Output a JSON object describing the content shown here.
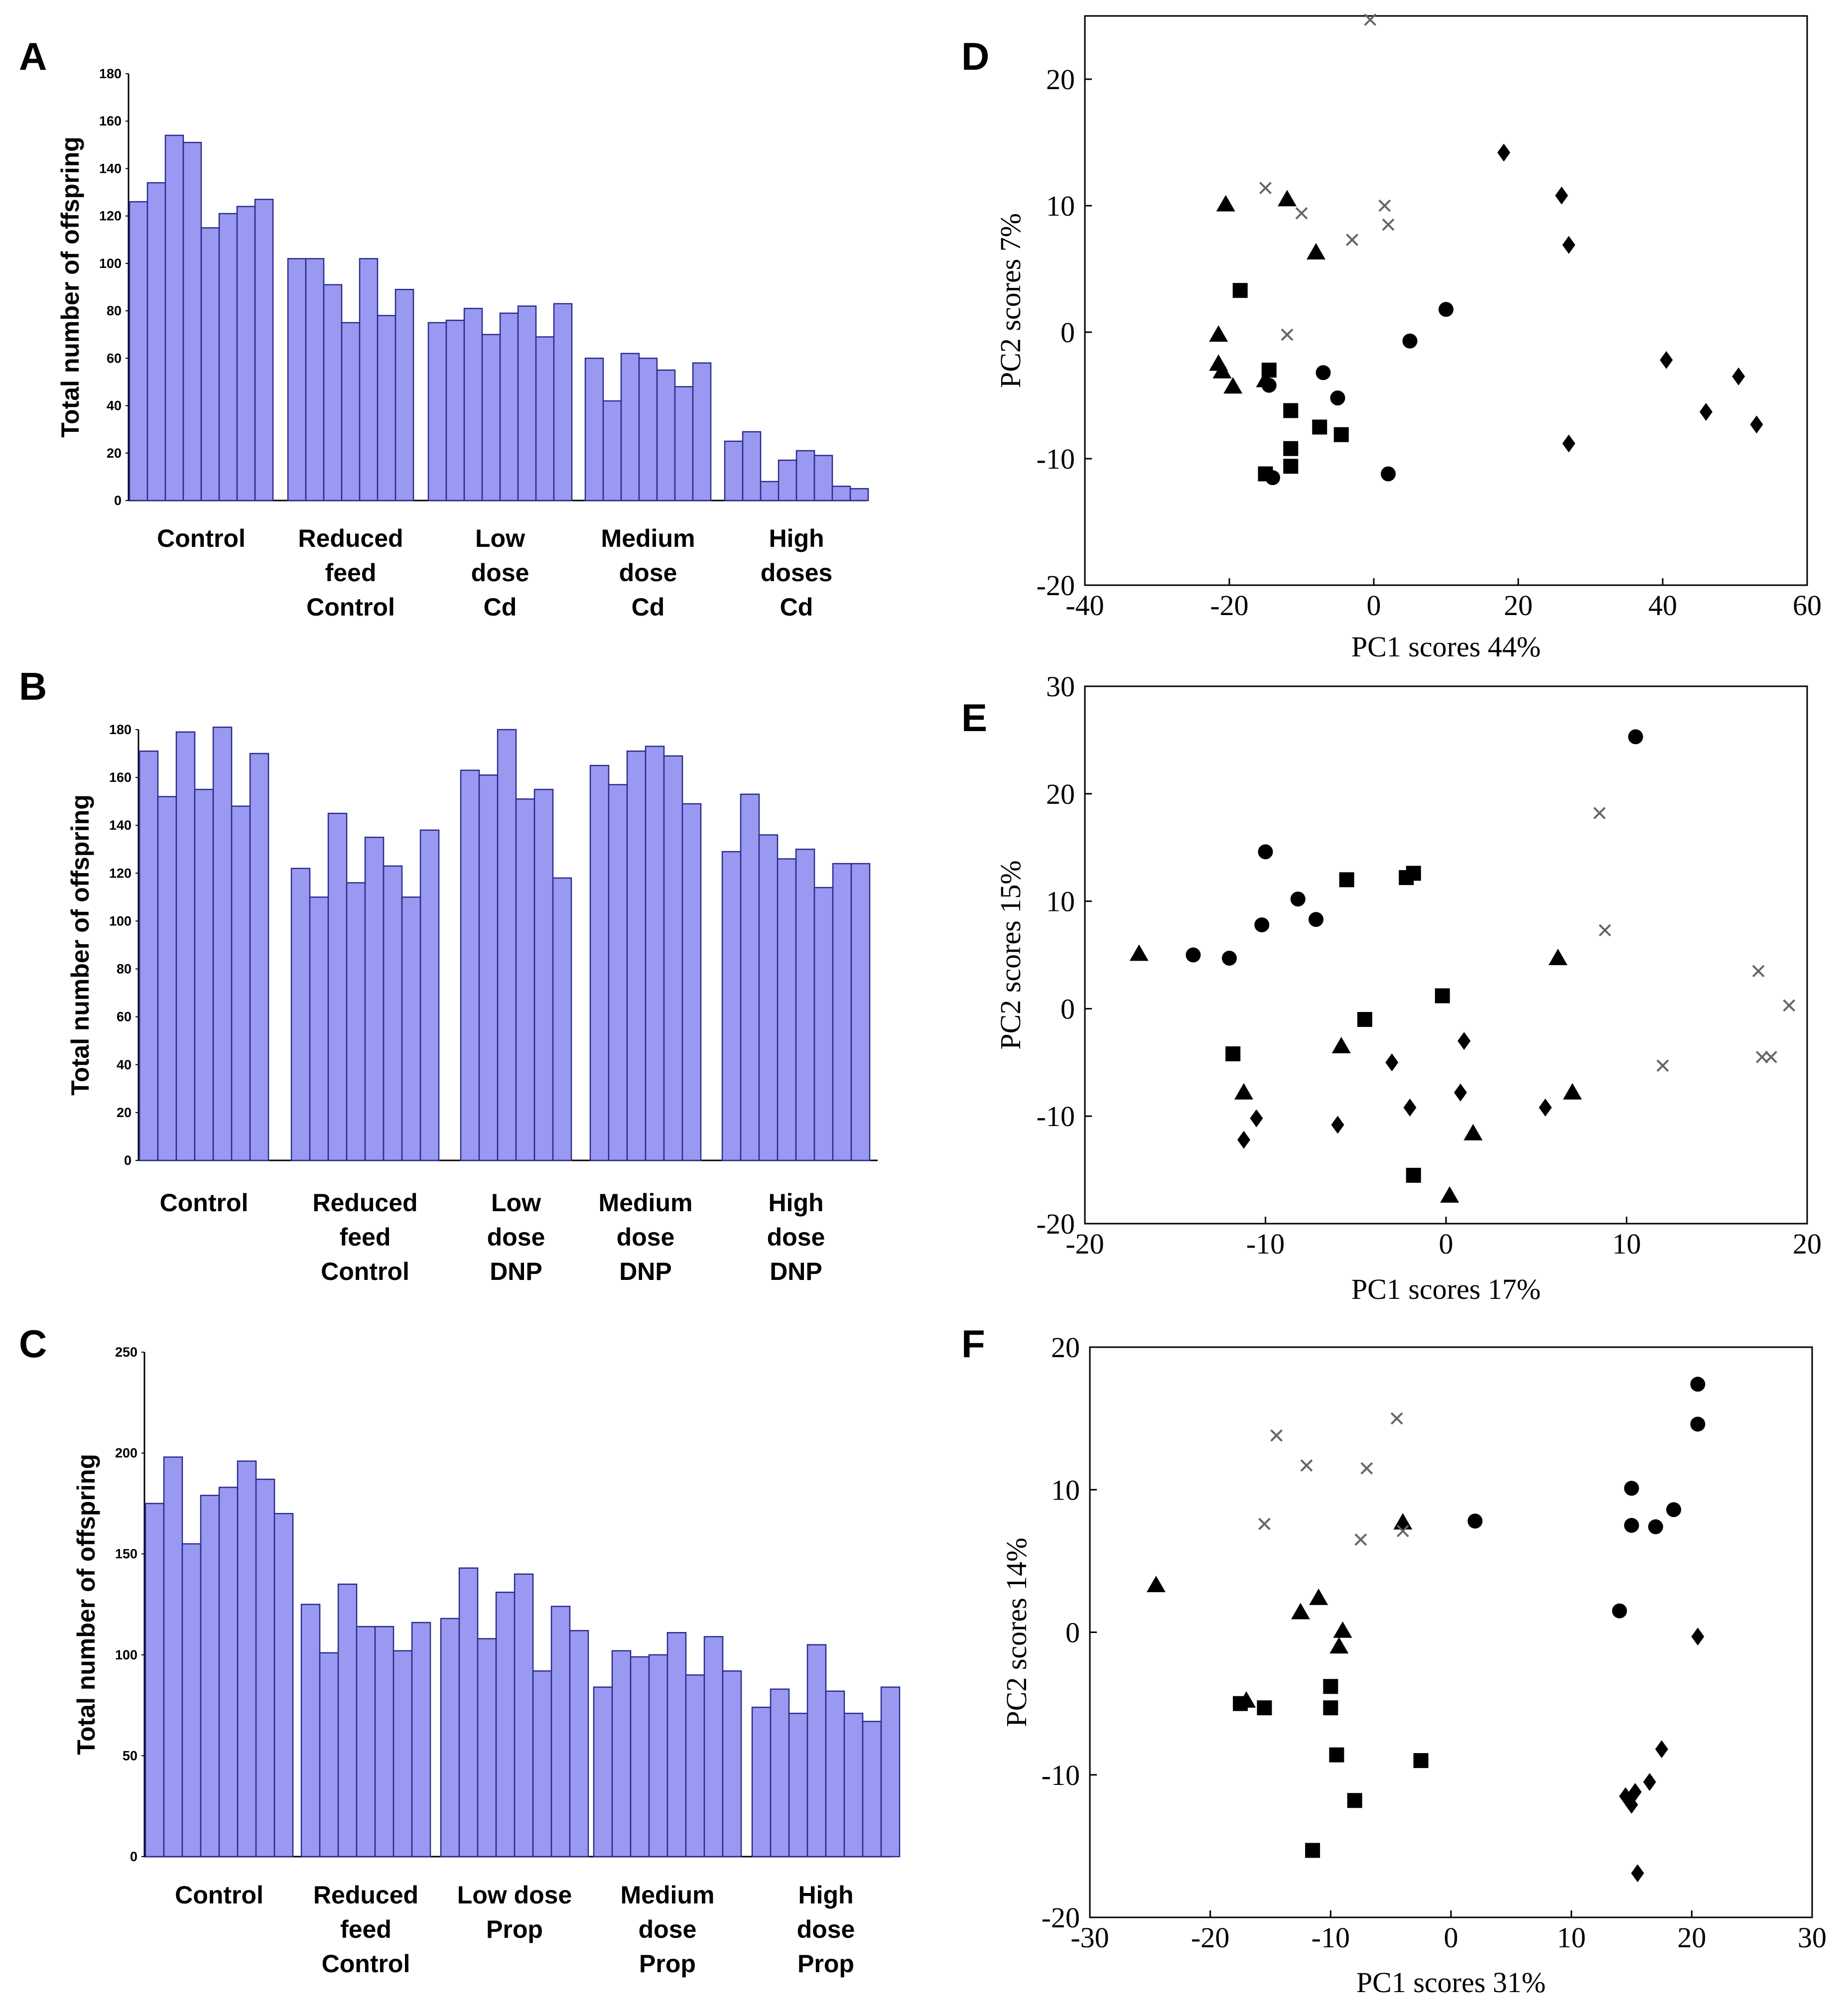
{
  "chart_data": [
    {
      "panel": "A",
      "type": "bar",
      "ylabel": "Total number of offspring",
      "ylim": [
        0,
        180
      ],
      "yticks": [
        0,
        20,
        40,
        60,
        80,
        100,
        120,
        140,
        160,
        180
      ],
      "groups": [
        {
          "label": [
            "Control"
          ],
          "values": [
            126,
            134,
            154,
            151,
            115,
            121,
            124,
            127
          ]
        },
        {
          "label": [
            "Reduced",
            "feed",
            "Control"
          ],
          "values": [
            102,
            102,
            91,
            75,
            102,
            78,
            89
          ]
        },
        {
          "label": [
            "Low",
            "dose",
            "Cd"
          ],
          "values": [
            75,
            76,
            81,
            70,
            79,
            82,
            69,
            83
          ]
        },
        {
          "label": [
            "Medium",
            "dose",
            "Cd"
          ],
          "values": [
            60,
            42,
            62,
            60,
            55,
            48,
            58
          ]
        },
        {
          "label": [
            "High",
            "doses",
            "Cd"
          ],
          "values": [
            25,
            29,
            8,
            17,
            21,
            19,
            6,
            5
          ]
        }
      ]
    },
    {
      "panel": "B",
      "type": "bar",
      "ylabel": "Total number of offspring",
      "ylim": [
        0,
        180
      ],
      "yticks": [
        0,
        20,
        40,
        60,
        80,
        100,
        120,
        140,
        160,
        180
      ],
      "groups": [
        {
          "label": [
            "Control"
          ],
          "values": [
            171,
            152,
            179,
            155,
            181,
            148,
            170
          ]
        },
        {
          "label": [
            "Reduced",
            "feed",
            "Control"
          ],
          "values": [
            122,
            110,
            145,
            116,
            135,
            123,
            110,
            138
          ]
        },
        {
          "label": [
            "Low",
            "dose",
            "DNP"
          ],
          "values": [
            163,
            161,
            180,
            151,
            155,
            118
          ]
        },
        {
          "label": [
            "Medium",
            "dose",
            "DNP"
          ],
          "values": [
            165,
            157,
            171,
            173,
            169,
            149
          ]
        },
        {
          "label": [
            "High",
            "dose",
            "DNP"
          ],
          "values": [
            129,
            153,
            136,
            126,
            130,
            114,
            124,
            124
          ]
        }
      ]
    },
    {
      "panel": "C",
      "type": "bar",
      "ylabel": "Total number of offspring",
      "ylim": [
        0,
        250
      ],
      "yticks": [
        0,
        50,
        100,
        150,
        200,
        250
      ],
      "groups": [
        {
          "label": [
            "Control"
          ],
          "values": [
            175,
            198,
            155,
            179,
            183,
            196,
            187,
            170
          ]
        },
        {
          "label": [
            "Reduced",
            "feed",
            "Control"
          ],
          "values": [
            125,
            101,
            135,
            114,
            114,
            102,
            116
          ]
        },
        {
          "label": [
            "Low dose",
            "Prop"
          ],
          "values": [
            118,
            143,
            108,
            131,
            140,
            92,
            124,
            112
          ]
        },
        {
          "label": [
            "Medium",
            "dose",
            "Prop"
          ],
          "values": [
            84,
            102,
            99,
            100,
            111,
            90,
            109,
            92
          ]
        },
        {
          "label": [
            "High",
            "dose",
            "Prop"
          ],
          "values": [
            74,
            83,
            71,
            105,
            82,
            71,
            67,
            84
          ]
        }
      ]
    },
    {
      "panel": "D",
      "type": "scatter",
      "xlabel": "PC1 scores 44%",
      "ylabel": "PC2 scores 7%",
      "xlim": [
        -40,
        60
      ],
      "ylim": [
        -20,
        25
      ],
      "xticks": [
        -40,
        -20,
        0,
        20,
        40,
        60
      ],
      "yticks": [
        -20,
        -10,
        0,
        10,
        20
      ],
      "series": [
        {
          "name": "circle",
          "points": [
            [
              -14.5,
              -4.2
            ],
            [
              -14,
              -11.5
            ],
            [
              -7,
              -3.2
            ],
            [
              -5,
              -5.2
            ],
            [
              2,
              -11.2
            ],
            [
              5,
              -0.7
            ],
            [
              10,
              1.8
            ]
          ]
        },
        {
          "name": "square",
          "points": [
            [
              -18.5,
              3.3
            ],
            [
              -14.5,
              -3
            ],
            [
              -15,
              -11.2
            ],
            [
              -11.5,
              -6.2
            ],
            [
              -11.5,
              -9.2
            ],
            [
              -11.5,
              -10.6
            ],
            [
              -7.5,
              -7.5
            ],
            [
              -4.5,
              -8.1
            ]
          ]
        },
        {
          "name": "triangle",
          "points": [
            [
              -20.5,
              10.1
            ],
            [
              -12,
              10.5
            ],
            [
              -8,
              6.3
            ],
            [
              -21.5,
              -0.2
            ],
            [
              -21.5,
              -2.5
            ],
            [
              -21,
              -3.1
            ],
            [
              -19.5,
              -4.3
            ],
            [
              -15,
              -3.8
            ]
          ]
        },
        {
          "name": "diamond",
          "points": [
            [
              18,
              14.2
            ],
            [
              26,
              10.8
            ],
            [
              27,
              6.9
            ],
            [
              27,
              -8.8
            ],
            [
              40.5,
              -2.2
            ],
            [
              46,
              -6.3
            ],
            [
              50.5,
              -3.5
            ],
            [
              53,
              -7.3
            ]
          ]
        },
        {
          "name": "cross",
          "points": [
            [
              -0.5,
              24.7
            ],
            [
              -15,
              11.4
            ],
            [
              -10,
              9.4
            ],
            [
              -3,
              7.3
            ],
            [
              1.5,
              10
            ],
            [
              2,
              8.5
            ],
            [
              -12,
              -0.2
            ]
          ]
        }
      ]
    },
    {
      "panel": "E",
      "type": "scatter",
      "xlabel": "PC1 scores 17%",
      "ylabel": "PC2 scores 15%",
      "xlim": [
        -20,
        20
      ],
      "ylim": [
        -20,
        30
      ],
      "xticks": [
        -20,
        -10,
        0,
        10,
        20
      ],
      "yticks": [
        -20,
        -10,
        0,
        10,
        20,
        30
      ],
      "series": [
        {
          "name": "circle",
          "points": [
            [
              -14,
              5
            ],
            [
              -12,
              4.7
            ],
            [
              -10.2,
              7.8
            ],
            [
              -10,
              14.6
            ],
            [
              -8.2,
              10.2
            ],
            [
              -7.2,
              8.3
            ],
            [
              10.5,
              25.3
            ]
          ]
        },
        {
          "name": "square",
          "points": [
            [
              -11.8,
              -4.2
            ],
            [
              -5.5,
              12
            ],
            [
              -4.5,
              -1
            ],
            [
              -2.2,
              12.2
            ],
            [
              -1.8,
              12.6
            ],
            [
              -1.8,
              -15.5
            ],
            [
              -0.2,
              1.2
            ]
          ]
        },
        {
          "name": "triangle",
          "points": [
            [
              -17,
              5.1
            ],
            [
              -11.2,
              -7.8
            ],
            [
              -5.8,
              -3.5
            ],
            [
              6.2,
              4.7
            ],
            [
              7,
              -7.8
            ],
            [
              1.5,
              -11.6
            ],
            [
              0.2,
              -17.4
            ]
          ]
        },
        {
          "name": "diamond",
          "points": [
            [
              -11.2,
              -12.2
            ],
            [
              -10.5,
              -10.2
            ],
            [
              -6,
              -10.8
            ],
            [
              -3,
              -5
            ],
            [
              -2,
              -9.2
            ],
            [
              1,
              -3
            ],
            [
              0.8,
              -7.8
            ],
            [
              5.5,
              -9.2
            ]
          ]
        },
        {
          "name": "cross",
          "points": [
            [
              8.5,
              18.2
            ],
            [
              8.8,
              7.3
            ],
            [
              17.3,
              3.5
            ],
            [
              19,
              0.3
            ],
            [
              12,
              -5.3
            ],
            [
              17.5,
              -4.5
            ],
            [
              18,
              -4.5
            ]
          ]
        }
      ]
    },
    {
      "panel": "F",
      "type": "scatter",
      "xlabel": "PC1 scores 31%",
      "ylabel": "PC2 scores 14%",
      "xlim": [
        -30,
        30
      ],
      "ylim": [
        -20,
        20
      ],
      "xticks": [
        -30,
        -20,
        -10,
        0,
        10,
        20,
        30
      ],
      "yticks": [
        -20,
        -10,
        0,
        10,
        20
      ],
      "series": [
        {
          "name": "circle",
          "points": [
            [
              2,
              7.8
            ],
            [
              14,
              1.5
            ],
            [
              15,
              10.1
            ],
            [
              15,
              7.5
            ],
            [
              17,
              7.4
            ],
            [
              18.5,
              8.6
            ],
            [
              20.5,
              14.6
            ],
            [
              20.5,
              17.4
            ]
          ]
        },
        {
          "name": "square",
          "points": [
            [
              -17.5,
              -5
            ],
            [
              -15.5,
              -5.3
            ],
            [
              -10,
              -3.8
            ],
            [
              -10,
              -5.3
            ],
            [
              -9.5,
              -8.6
            ],
            [
              -8,
              -11.8
            ],
            [
              -11.5,
              -15.3
            ],
            [
              -2.5,
              -9
            ]
          ]
        },
        {
          "name": "triangle",
          "points": [
            [
              -24.5,
              3.3
            ],
            [
              -17,
              -4.8
            ],
            [
              -12.5,
              1.4
            ],
            [
              -11,
              2.4
            ],
            [
              -9,
              0.1
            ],
            [
              -9.3,
              -1
            ],
            [
              -4,
              7.7
            ]
          ]
        },
        {
          "name": "diamond",
          "points": [
            [
              14.5,
              -11.5
            ],
            [
              15,
              -12.1
            ],
            [
              15.3,
              -11.2
            ],
            [
              16.5,
              -10.5
            ],
            [
              17.5,
              -8.2
            ],
            [
              20.5,
              -0.3
            ],
            [
              15.5,
              -16.9
            ]
          ]
        },
        {
          "name": "cross",
          "points": [
            [
              -15.5,
              7.6
            ],
            [
              -14.5,
              13.8
            ],
            [
              -12,
              11.7
            ],
            [
              -7,
              11.5
            ],
            [
              -4.5,
              15
            ],
            [
              -7.5,
              6.5
            ],
            [
              -4,
              7.1
            ]
          ]
        }
      ]
    }
  ]
}
